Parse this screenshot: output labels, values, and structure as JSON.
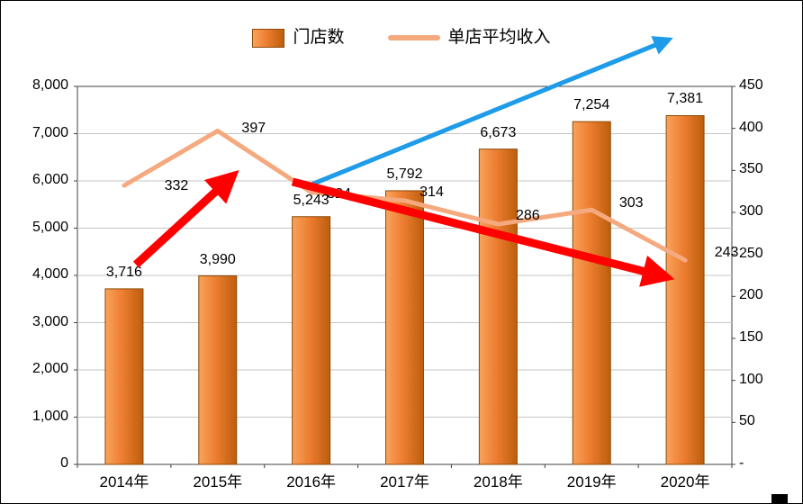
{
  "legend": {
    "bar_series": "门店数",
    "line_series": "单店平均收入"
  },
  "chart_data": {
    "type": "bar",
    "subtype": "combo-bar-line",
    "title": "",
    "categories": [
      "2014年",
      "2015年",
      "2016年",
      "2017年",
      "2018年",
      "2019年",
      "2020年"
    ],
    "series": [
      {
        "name": "门店数",
        "type": "bar",
        "axis": "left",
        "values": [
          3716,
          3990,
          5243,
          5792,
          6673,
          7254,
          7381
        ],
        "labels": [
          "3,716",
          "3,990",
          "5,243",
          "5,792",
          "6,673",
          "7,254",
          "7,381"
        ]
      },
      {
        "name": "单店平均收入",
        "type": "line",
        "axis": "right",
        "values": [
          332,
          397,
          324,
          314,
          286,
          303,
          243
        ],
        "labels": [
          "332",
          "397",
          "324",
          "314",
          "286",
          "303",
          "243"
        ]
      }
    ],
    "left_axis": {
      "min": 0,
      "max": 8000,
      "step": 1000,
      "tick_labels": [
        "8,000",
        "7,000",
        "6,000",
        "5,000",
        "4,000",
        "3,000",
        "2,000",
        "1,000",
        "0"
      ]
    },
    "right_axis": {
      "min": 0,
      "max": 450,
      "step": 50,
      "tick_labels": [
        "450",
        "400",
        "350",
        "300",
        "250",
        "200",
        "150",
        "100",
        "50",
        "-"
      ]
    },
    "legend_position": "top",
    "grid": "horizontal",
    "colors": {
      "bar_light": "#F9A35B",
      "bar_fill": "#ED7D31",
      "bar_dark": "#BC5E0C",
      "bar_edge": "#8C4A08",
      "line": "#F5A97E",
      "grid": "#C6C6C6",
      "plot_border": "#404040",
      "arrow_red": "#FF0000",
      "arrow_blue": "#1E9BE9"
    }
  },
  "annotations": [
    {
      "type": "arrow",
      "color": "#FF0000",
      "direction": "up-right"
    },
    {
      "type": "arrow",
      "color": "#1E9BE9",
      "direction": "up-right"
    },
    {
      "type": "arrow",
      "color": "#FF0000",
      "direction": "down-right"
    }
  ]
}
